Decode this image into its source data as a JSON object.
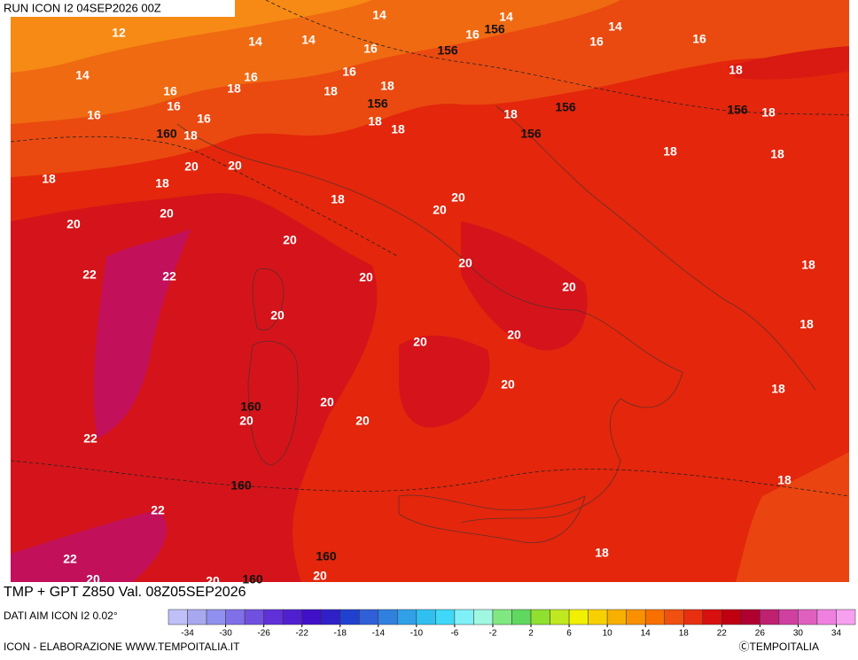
{
  "header": {
    "run": "RUN ICON I2 04SEP2026 00Z",
    "title": "TMP + GPT Z850 Val. 08Z05SEP2026"
  },
  "footer": {
    "source": "DATI AIM ICON I2 0.02°",
    "credit": "ICON - ELABORAZIONE WWW.TEMPOITALIA.IT",
    "copyright": "ⒸTEMPOITALIA"
  },
  "contour_labels": [
    "14",
    "14",
    "14",
    "14",
    "14",
    "14",
    "12",
    "16",
    "16",
    "16",
    "16",
    "16",
    "16",
    "16",
    "16",
    "16",
    "16",
    "156",
    "156",
    "156",
    "156",
    "156",
    "156",
    "18",
    "18",
    "18",
    "18",
    "18",
    "18",
    "18",
    "18",
    "18",
    "18",
    "18",
    "18",
    "18",
    "18",
    "18",
    "18",
    "18",
    "18",
    "18",
    "18",
    "18",
    "160",
    "160",
    "160",
    "160",
    "160",
    "20",
    "20",
    "20",
    "20",
    "20",
    "20",
    "20",
    "20",
    "20",
    "20",
    "20",
    "20",
    "20",
    "20",
    "20",
    "20",
    "20",
    "20",
    "20",
    "20",
    "22",
    "22",
    "22",
    "22",
    "22"
  ],
  "colorbar": {
    "range": [
      -36,
      36
    ],
    "ticks": [
      -34,
      -30,
      -26,
      -22,
      -18,
      -14,
      -10,
      -6,
      -2,
      2,
      6,
      10,
      14,
      18,
      22,
      26,
      30,
      34
    ],
    "colors": [
      "#c0c0f8",
      "#a8a8f0",
      "#9090f0",
      "#8070e8",
      "#7050e0",
      "#6030d8",
      "#5020d0",
      "#4010c8",
      "#3020c8",
      "#2040d0",
      "#3060d8",
      "#3080e0",
      "#30a0e8",
      "#30c0f0",
      "#40d8f8",
      "#80f0f8",
      "#a0f8e0",
      "#80e880",
      "#60d860",
      "#90e030",
      "#c0e820",
      "#f0f000",
      "#f8d000",
      "#f8b000",
      "#f89000",
      "#f87000",
      "#f05010",
      "#e83010",
      "#d81010",
      "#c00010",
      "#b00030",
      "#c02070",
      "#d040a0",
      "#e060c0",
      "#f080e0",
      "#f8a0f0"
    ]
  }
}
